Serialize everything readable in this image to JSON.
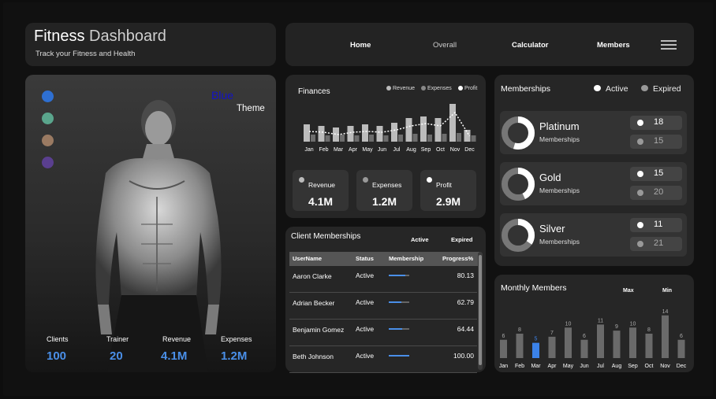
{
  "header": {
    "title_bold": "Fitness",
    "title_rest": " Dashboard",
    "subtitle": "Track your Fitness and Health"
  },
  "nav": {
    "items": [
      "Home",
      "Overall",
      "Calculator",
      "Members"
    ]
  },
  "hero": {
    "theme_word_colored": "Blue",
    "theme_word": "Theme",
    "theme_swatches": [
      "#2e6fd1",
      "#5aa58c",
      "#9a7a62",
      "#5a3f8f"
    ],
    "stats": [
      {
        "label": "Clients",
        "value": "100"
      },
      {
        "label": "Trainer",
        "value": "20"
      },
      {
        "label": "Revenue",
        "value": "4.1M"
      },
      {
        "label": "Expenses",
        "value": "1.2M"
      }
    ]
  },
  "finances": {
    "title": "Finances",
    "legend": [
      "Revenue",
      "Expenses",
      "Profit"
    ],
    "kpis": [
      {
        "label": "Revenue",
        "value": "4.1M"
      },
      {
        "label": "Expenses",
        "value": "1.2M"
      },
      {
        "label": "Profit",
        "value": "2.9M"
      }
    ]
  },
  "chart_data": [
    {
      "type": "bar",
      "title": "Finances",
      "categories": [
        "Jan",
        "Feb",
        "Mar",
        "Apr",
        "May",
        "Jun",
        "Jul",
        "Aug",
        "Sep",
        "Oct",
        "Nov",
        "Dec"
      ],
      "series": [
        {
          "name": "Revenue",
          "values": [
            22,
            20,
            18,
            20,
            22,
            20,
            24,
            30,
            32,
            30,
            48,
            15
          ]
        },
        {
          "name": "Expenses",
          "values": [
            9,
            8,
            9,
            8,
            9,
            8,
            9,
            10,
            9,
            10,
            11,
            8
          ]
        },
        {
          "name": "Profit",
          "values": [
            13,
            12,
            9,
            12,
            13,
            12,
            15,
            20,
            23,
            20,
            37,
            7
          ]
        }
      ],
      "legend_position": "top-right"
    },
    {
      "type": "bar",
      "title": "Monthly Members",
      "categories": [
        "Jan",
        "Feb",
        "Mar",
        "Apr",
        "May",
        "Jun",
        "Jul",
        "Aug",
        "Sep",
        "Oct",
        "Nov",
        "Dec"
      ],
      "values": [
        6,
        8,
        5,
        7,
        10,
        6,
        11,
        9,
        10,
        8,
        14,
        6
      ],
      "highlight_index": 2
    }
  ],
  "client_memberships": {
    "title": "Client Memberships",
    "filter_active": "Active",
    "filter_expired": "Expired",
    "columns": [
      "UserName",
      "Status",
      "Membership",
      "Progress%"
    ],
    "rows": [
      {
        "name": "Aaron Clarke",
        "status": "Active",
        "progress": "80.13",
        "progress_value": 0.8013
      },
      {
        "name": "Adrian Becker",
        "status": "Active",
        "progress": "62.79",
        "progress_value": 0.6279
      },
      {
        "name": "Benjamin Gomez",
        "status": "Active",
        "progress": "64.44",
        "progress_value": 0.6444
      },
      {
        "name": "Beth Johnson",
        "status": "Active",
        "progress": "100.00",
        "progress_value": 1.0
      }
    ]
  },
  "memberships": {
    "title": "Memberships",
    "legend_active": "Active",
    "legend_expired": "Expired",
    "kind_label": "Memberships",
    "tiers": [
      {
        "name": "Platinum",
        "active": "18",
        "expired": "15"
      },
      {
        "name": "Gold",
        "active": "15",
        "expired": "20"
      },
      {
        "name": "Silver",
        "active": "11",
        "expired": "21"
      }
    ]
  },
  "monthly_members": {
    "title": "Monthly Members",
    "max_label": "Max",
    "min_label": "Min"
  },
  "colors": {
    "accent": "#4a8fe8",
    "bar": "#bcbcbc",
    "bar_dark": "#6d6d6d"
  }
}
